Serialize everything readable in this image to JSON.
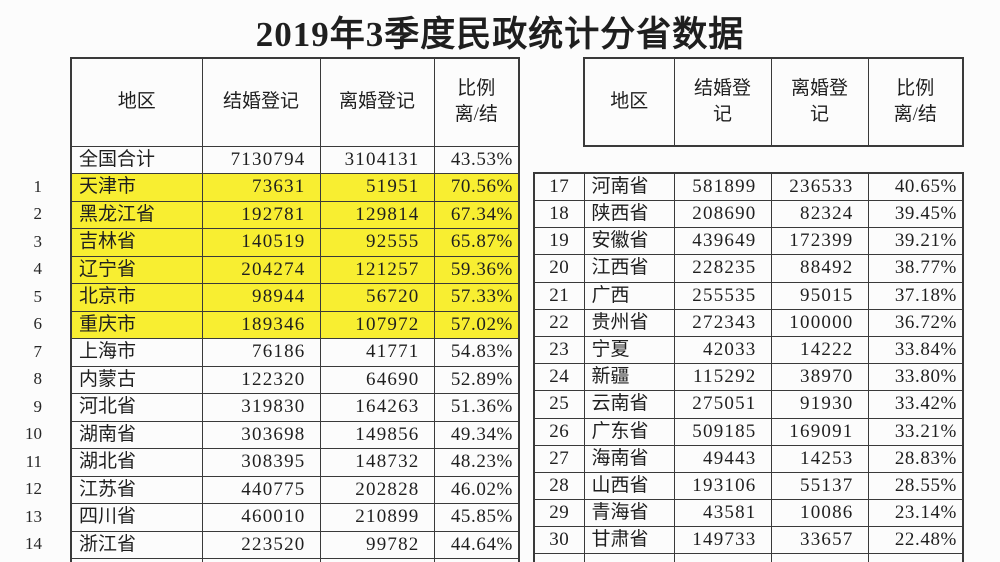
{
  "title": "2019年3季度民政统计分省数据",
  "colors": {
    "highlight": "#f8ee31",
    "border": "#3a3a3a",
    "text": "#1f1f1f",
    "background": "#fcfcfc"
  },
  "chart_data": [
    {
      "type": "table",
      "side": "left",
      "columns": [
        "地区",
        "结婚登记",
        "离婚登记",
        "比例\n离/结"
      ],
      "row_number_column_outside": true,
      "rows": [
        {
          "no": "",
          "region": "全国合计",
          "marriage": "7130794",
          "divorce": "3104131",
          "ratio": "43.53%",
          "highlight": false
        },
        {
          "no": "1",
          "region": "天津市",
          "marriage": "73631",
          "divorce": "51951",
          "ratio": "70.56%",
          "highlight": true
        },
        {
          "no": "2",
          "region": "黑龙江省",
          "marriage": "192781",
          "divorce": "129814",
          "ratio": "67.34%",
          "highlight": true
        },
        {
          "no": "3",
          "region": "吉林省",
          "marriage": "140519",
          "divorce": "92555",
          "ratio": "65.87%",
          "highlight": true
        },
        {
          "no": "4",
          "region": "辽宁省",
          "marriage": "204274",
          "divorce": "121257",
          "ratio": "59.36%",
          "highlight": true
        },
        {
          "no": "5",
          "region": "北京市",
          "marriage": "98944",
          "divorce": "56720",
          "ratio": "57.33%",
          "highlight": true
        },
        {
          "no": "6",
          "region": "重庆市",
          "marriage": "189346",
          "divorce": "107972",
          "ratio": "57.02%",
          "highlight": true
        },
        {
          "no": "7",
          "region": "上海市",
          "marriage": "76186",
          "divorce": "41771",
          "ratio": "54.83%",
          "highlight": false
        },
        {
          "no": "8",
          "region": "内蒙古",
          "marriage": "122320",
          "divorce": "64690",
          "ratio": "52.89%",
          "highlight": false
        },
        {
          "no": "9",
          "region": "河北省",
          "marriage": "319830",
          "divorce": "164263",
          "ratio": "51.36%",
          "highlight": false
        },
        {
          "no": "10",
          "region": "湖南省",
          "marriage": "303698",
          "divorce": "149856",
          "ratio": "49.34%",
          "highlight": false
        },
        {
          "no": "11",
          "region": "湖北省",
          "marriage": "308395",
          "divorce": "148732",
          "ratio": "48.23%",
          "highlight": false
        },
        {
          "no": "12",
          "region": "江苏省",
          "marriage": "440775",
          "divorce": "202828",
          "ratio": "46.02%",
          "highlight": false
        },
        {
          "no": "13",
          "region": "四川省",
          "marriage": "460010",
          "divorce": "210899",
          "ratio": "45.85%",
          "highlight": false
        },
        {
          "no": "14",
          "region": "浙江省",
          "marriage": "223520",
          "divorce": "99782",
          "ratio": "44.64%",
          "highlight": false
        }
      ]
    },
    {
      "type": "table",
      "side": "right",
      "columns": [
        "地区",
        "结婚登\n记",
        "离婚登\n记",
        "比例\n离/结"
      ],
      "row_number_column_outside": false,
      "rows": [
        {
          "no": "17",
          "region": "河南省",
          "marriage": "581899",
          "divorce": "236533",
          "ratio": "40.65%",
          "highlight": false
        },
        {
          "no": "18",
          "region": "陕西省",
          "marriage": "208690",
          "divorce": "82324",
          "ratio": "39.45%",
          "highlight": false
        },
        {
          "no": "19",
          "region": "安徽省",
          "marriage": "439649",
          "divorce": "172399",
          "ratio": "39.21%",
          "highlight": false
        },
        {
          "no": "20",
          "region": "江西省",
          "marriage": "228235",
          "divorce": "88492",
          "ratio": "38.77%",
          "highlight": false
        },
        {
          "no": "21",
          "region": "广西",
          "marriage": "255535",
          "divorce": "95015",
          "ratio": "37.18%",
          "highlight": false
        },
        {
          "no": "22",
          "region": "贵州省",
          "marriage": "272343",
          "divorce": "100000",
          "ratio": "36.72%",
          "highlight": false
        },
        {
          "no": "23",
          "region": "宁夏",
          "marriage": "42033",
          "divorce": "14222",
          "ratio": "33.84%",
          "highlight": false
        },
        {
          "no": "24",
          "region": "新疆",
          "marriage": "115292",
          "divorce": "38970",
          "ratio": "33.80%",
          "highlight": false
        },
        {
          "no": "25",
          "region": "云南省",
          "marriage": "275051",
          "divorce": "91930",
          "ratio": "33.42%",
          "highlight": false
        },
        {
          "no": "26",
          "region": "广东省",
          "marriage": "509185",
          "divorce": "169091",
          "ratio": "33.21%",
          "highlight": false
        },
        {
          "no": "27",
          "region": "海南省",
          "marriage": "49443",
          "divorce": "14253",
          "ratio": "28.83%",
          "highlight": false
        },
        {
          "no": "28",
          "region": "山西省",
          "marriage": "193106",
          "divorce": "55137",
          "ratio": "28.55%",
          "highlight": false
        },
        {
          "no": "29",
          "region": "青海省",
          "marriage": "43581",
          "divorce": "10086",
          "ratio": "23.14%",
          "highlight": false
        },
        {
          "no": "30",
          "region": "甘肃省",
          "marriage": "149733",
          "divorce": "33657",
          "ratio": "22.48%",
          "highlight": false
        }
      ]
    }
  ]
}
